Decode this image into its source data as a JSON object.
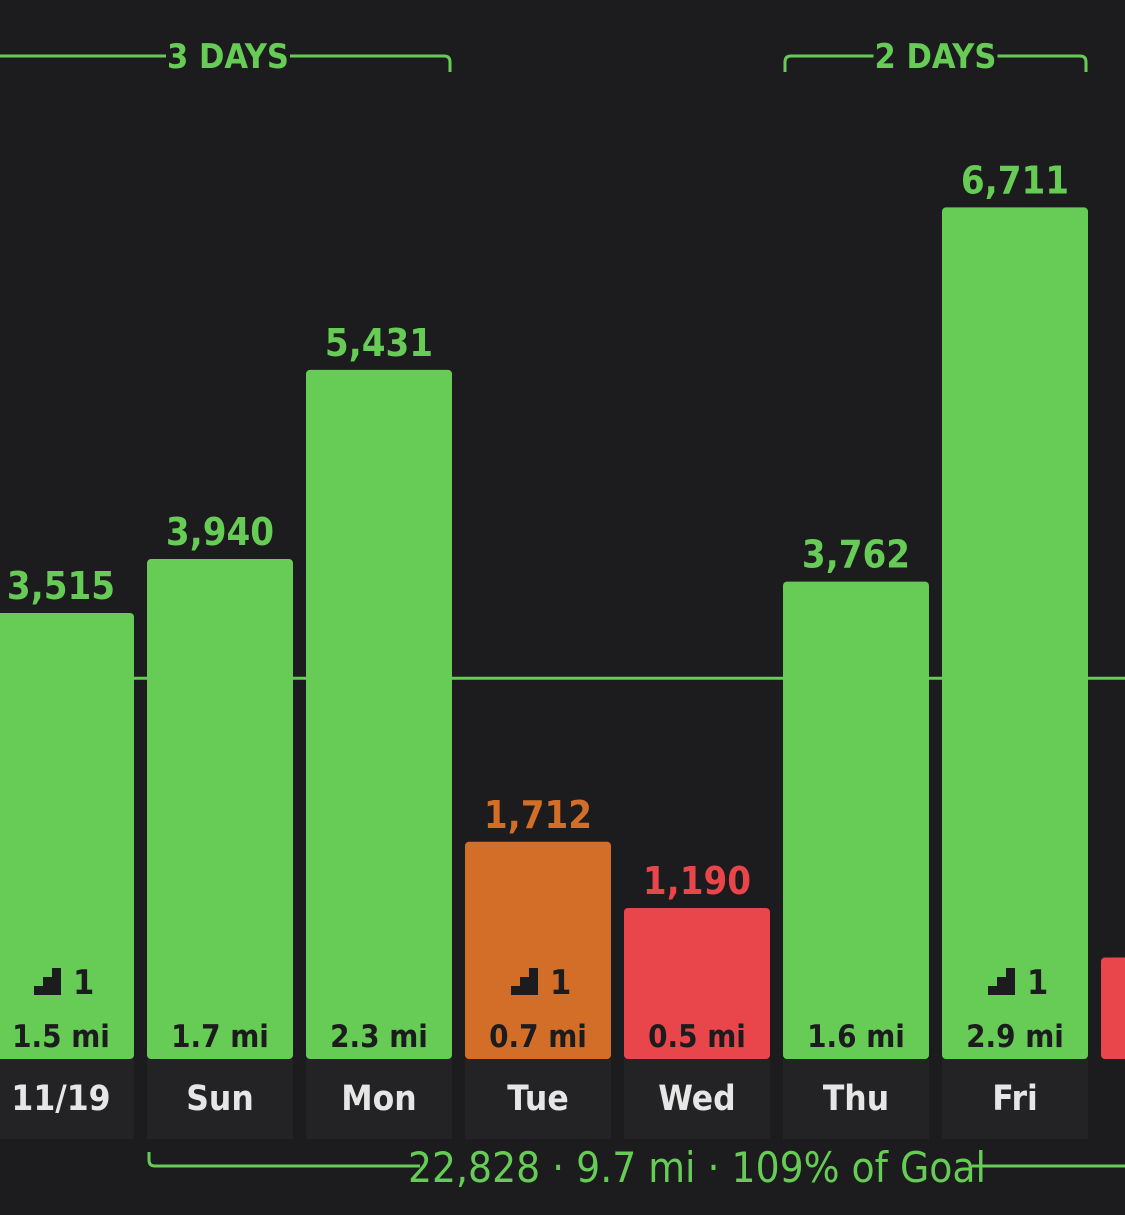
{
  "colors": {
    "green": "#66cc55",
    "orange": "#d26e28",
    "red": "#e8464a",
    "background": "#1c1c1e",
    "label": "#e6e6e6"
  },
  "summary": {
    "steps": "22,828",
    "separator": "·",
    "distance": "9.7 mi",
    "goal": "109% of Goal"
  },
  "streaks": [
    {
      "label": "3 DAYS",
      "from": "11/19",
      "to": "Mon",
      "open_left": true
    },
    {
      "label": "2 DAYS",
      "from": "Thu",
      "to": "Fri",
      "open_left": false
    }
  ],
  "chart_data": {
    "type": "bar",
    "categories": [
      "11/19",
      "Sun",
      "Mon",
      "Tue",
      "Wed",
      "Thu",
      "Fri"
    ],
    "values": [
      3515,
      3940,
      5431,
      1712,
      1190,
      3762,
      6711
    ],
    "value_labels": [
      "3,515",
      "3,940",
      "5,431",
      "1,712",
      "1,190",
      "3,762",
      "6,711"
    ],
    "distances": [
      "1.5 mi",
      "1.7 mi",
      "2.3 mi",
      "0.7 mi",
      "0.5 mi",
      "1.6 mi",
      "2.9 mi"
    ],
    "floors": [
      1,
      null,
      null,
      1,
      null,
      null,
      1
    ],
    "status": [
      "green",
      "green",
      "green",
      "orange",
      "red",
      "green",
      "green"
    ],
    "goal": 3000,
    "partial_next_value": 800,
    "partial_next_status": "red",
    "ylim": [
      0,
      7250
    ]
  }
}
